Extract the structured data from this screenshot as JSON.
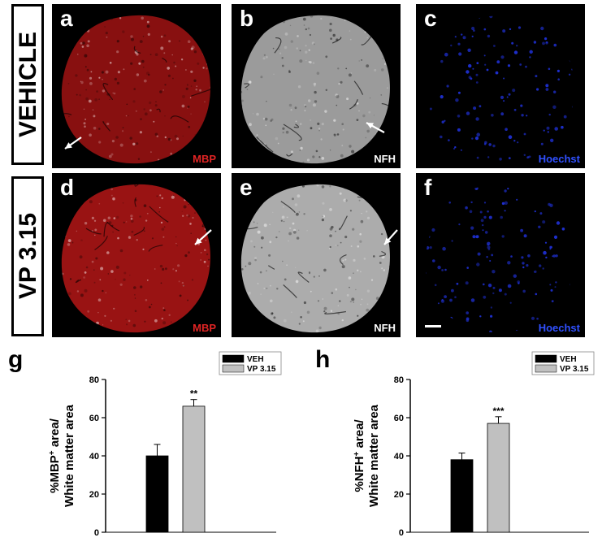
{
  "figure": {
    "rows": [
      {
        "label": "VEHICLE"
      },
      {
        "label": "VP 3.15"
      }
    ],
    "panels": [
      {
        "letter": "a",
        "stain": "MBP",
        "stain_color": "#e02424",
        "tissue_color": "#b51616"
      },
      {
        "letter": "b",
        "stain": "NFH",
        "stain_color": "#ffffff",
        "tissue_color": "#cfcfcf"
      },
      {
        "letter": "c",
        "stain": "Hoechst",
        "stain_color": "#3050ff",
        "tissue_color": "#1e2fd0"
      },
      {
        "letter": "d",
        "stain": "MBP",
        "stain_color": "#e02424",
        "tissue_color": "#cc1a1a"
      },
      {
        "letter": "e",
        "stain": "NFH",
        "stain_color": "#ffffff",
        "tissue_color": "#e6e6e6"
      },
      {
        "letter": "f",
        "stain": "Hoechst",
        "stain_color": "#3050ff",
        "tissue_color": "#1e2fd0"
      }
    ]
  },
  "chart_data": [
    {
      "panel": "g",
      "type": "bar",
      "categories": [
        "VEH",
        "VP 3.15"
      ],
      "values": [
        40,
        66
      ],
      "errors": [
        6,
        3.5
      ],
      "significance": [
        "",
        "**"
      ],
      "colors": [
        "#000000",
        "#c0c0c0"
      ],
      "ylabel_line1": "%MBP",
      "ylabel_sup": "+",
      "ylabel_line1_rest": " area/",
      "ylabel_line2": "White matter area",
      "ylim": [
        0,
        80
      ],
      "yticks": [
        "0",
        "20",
        "40",
        "60",
        "80"
      ],
      "legend": [
        {
          "name": "VEH",
          "color": "#000000"
        },
        {
          "name": "VP 3.15",
          "color": "#c0c0c0"
        }
      ],
      "legend_position": "top-right",
      "grid": false
    },
    {
      "panel": "h",
      "type": "bar",
      "categories": [
        "VEH",
        "VP 3.15"
      ],
      "values": [
        38,
        57
      ],
      "errors": [
        3.5,
        3.5
      ],
      "significance": [
        "",
        "***"
      ],
      "colors": [
        "#000000",
        "#c0c0c0"
      ],
      "ylabel_line1": "%NFH",
      "ylabel_sup": "+",
      "ylabel_line1_rest": " area/",
      "ylabel_line2": "White matter area",
      "ylim": [
        0,
        80
      ],
      "yticks": [
        "0",
        "20",
        "40",
        "60",
        "80"
      ],
      "legend": [
        {
          "name": "VEH",
          "color": "#000000"
        },
        {
          "name": "VP 3.15",
          "color": "#c0c0c0"
        }
      ],
      "legend_position": "top-right",
      "grid": false
    }
  ]
}
